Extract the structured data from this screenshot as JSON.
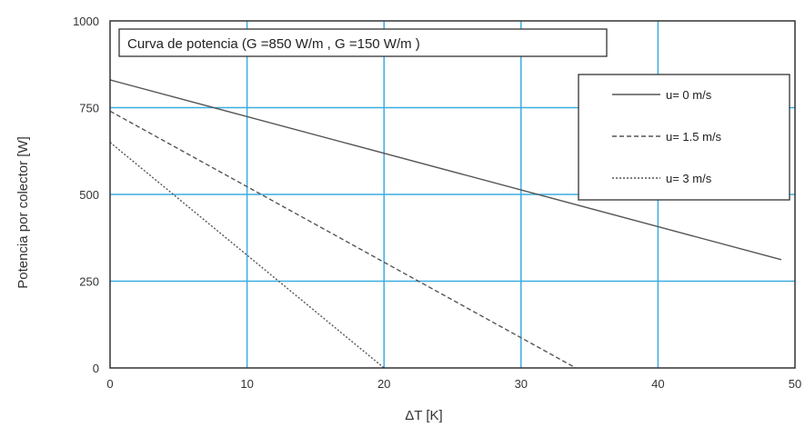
{
  "chart_data": {
    "type": "line",
    "title": "Curva de potencia (G =850 W/m , G =150 W/m )",
    "xlabel": "ΔT [K]",
    "ylabel": "Potencia por colector [W]",
    "xlim": [
      0,
      50
    ],
    "ylim": [
      0,
      1000
    ],
    "xticks": [
      "0",
      "10",
      "20",
      "30",
      "40",
      "50"
    ],
    "yticks": [
      "0",
      "250",
      "500",
      "750",
      "1000"
    ],
    "grid": true,
    "legend_position": "top-right",
    "colors": {
      "grid": "#3aaee0",
      "line": "#555555",
      "frame": "#333333"
    },
    "series": [
      {
        "name": "u= 0 m/s",
        "style": "solid",
        "x": [
          0,
          49
        ],
        "y": [
          830,
          312
        ]
      },
      {
        "name": "u= 1.5 m/s",
        "style": "dashed",
        "x": [
          0,
          34
        ],
        "y": [
          740,
          0
        ]
      },
      {
        "name": "u= 3 m/s",
        "style": "dotted",
        "x": [
          0,
          20
        ],
        "y": [
          650,
          0
        ]
      }
    ]
  }
}
